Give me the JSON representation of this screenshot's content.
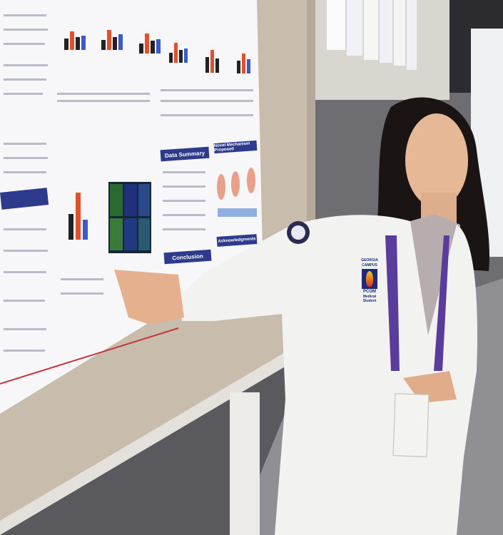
{
  "poster": {
    "sections": [
      "Data Summary",
      "Novel Mechanism Proposed",
      "Conclusion",
      "Acknowledgments"
    ]
  },
  "badge": {
    "campus": "GEORGIA CAMPUS",
    "org": "PCOM",
    "role": "Medical Student"
  },
  "colors": {
    "poster_header": "#2e3a8c",
    "lab_coat": "#f2f2f0",
    "board": "#c8bdad",
    "hair": "#1a1414",
    "lanyard": "#5a3c9c"
  }
}
